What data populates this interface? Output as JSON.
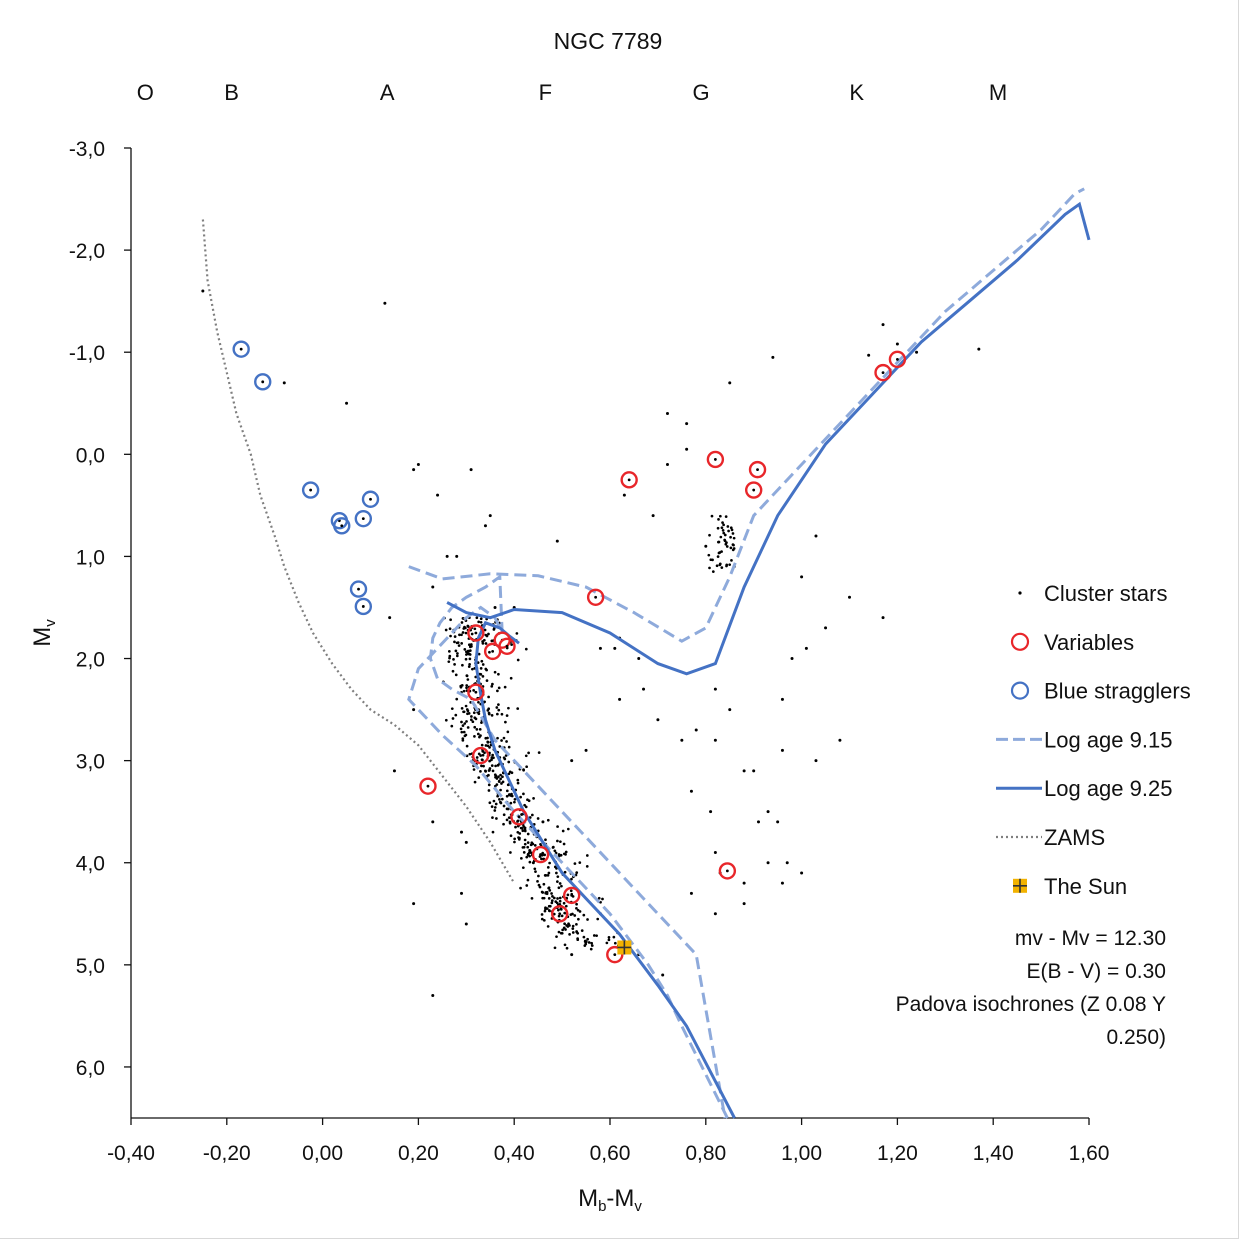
{
  "chart_data": {
    "type": "scatter",
    "title": "NGC 7789",
    "xlabel": "Mb-Mv",
    "ylabel": "Mv",
    "xlim": [
      -0.4,
      1.6
    ],
    "ylim": [
      6.5,
      -3.0
    ],
    "y_inverted": true,
    "grid": false,
    "legend_position": "right",
    "x_ticks": [
      -0.4,
      -0.2,
      0.0,
      0.2,
      0.4,
      0.6,
      0.8,
      1.0,
      1.2,
      1.4,
      1.6
    ],
    "x_tick_labels": [
      "-0,40",
      "-0,20",
      "0,00",
      "0,20",
      "0,40",
      "0,60",
      "0,80",
      "1,00",
      "1,20",
      "1,40",
      "1,60"
    ],
    "y_ticks": [
      -3,
      -2,
      -1,
      0,
      1,
      2,
      3,
      4,
      5,
      6
    ],
    "y_tick_labels": [
      "-3,0",
      "-2,0",
      "-1,0",
      "0,0",
      "1,0",
      "2,0",
      "3,0",
      "4,0",
      "5,0",
      "6,0"
    ],
    "spectral_classes": [
      {
        "label": "O",
        "x": -0.37
      },
      {
        "label": "B",
        "x": -0.19
      },
      {
        "label": "A",
        "x": 0.135
      },
      {
        "label": "F",
        "x": 0.465
      },
      {
        "label": "G",
        "x": 0.79
      },
      {
        "label": "K",
        "x": 1.115
      },
      {
        "label": "M",
        "x": 1.41
      }
    ],
    "series": [
      {
        "name": "Cluster stars",
        "kind": "points",
        "color": "#000000",
        "description": "main sequence and red clump members, scattered field points",
        "x": [
          -0.25,
          0.13,
          -0.08,
          0.05,
          0.19,
          0.31,
          0.24,
          0.35,
          0.34,
          0.26,
          0.23,
          0.14,
          0.29,
          0.49,
          0.76,
          0.72,
          0.63,
          0.69,
          0.8,
          1.1,
          1.17,
          1.0,
          1.03,
          1.24,
          1.37,
          1.17,
          1.2,
          1.14,
          0.94,
          0.85,
          0.76,
          0.72,
          0.62,
          0.62,
          0.66,
          0.7,
          0.82,
          0.88,
          0.96,
          1.08,
          0.96,
          0.98,
          1.01,
          1.05,
          1.03,
          0.93,
          0.93,
          0.91,
          0.9,
          0.85,
          0.82,
          0.75,
          0.77,
          0.95,
          0.97,
          0.88,
          0.83,
          0.77,
          0.82,
          0.66,
          0.52,
          0.46,
          0.71,
          0.82,
          0.88,
          0.96,
          1.0,
          0.81,
          0.15,
          0.19,
          0.23,
          0.61,
          0.3,
          0.29,
          0.19,
          0.3,
          0.52,
          0.78,
          0.36,
          0.28,
          0.2,
          0.23,
          0.55,
          0.58,
          0.67,
          0.4,
          0.44,
          0.58
        ],
        "y": [
          -1.6,
          -1.48,
          -0.7,
          -0.5,
          0.15,
          0.15,
          0.4,
          0.6,
          0.7,
          1.0,
          1.3,
          1.6,
          3.7,
          0.85,
          -0.05,
          -0.4,
          0.4,
          0.6,
          0.9,
          1.4,
          1.6,
          1.2,
          0.8,
          -1.0,
          -1.03,
          -1.27,
          -1.08,
          -0.97,
          -0.95,
          -0.7,
          -0.3,
          0.1,
          1.8,
          2.4,
          2.0,
          2.6,
          2.8,
          3.1,
          2.9,
          2.8,
          2.4,
          2.0,
          1.9,
          1.7,
          3.0,
          4.0,
          3.5,
          3.6,
          3.1,
          2.5,
          2.3,
          2.8,
          3.3,
          3.6,
          4.0,
          4.2,
          4.1,
          4.3,
          4.5,
          4.9,
          4.9,
          3.6,
          5.1,
          3.9,
          4.4,
          4.2,
          4.1,
          3.5,
          3.1,
          2.5,
          5.3,
          1.9,
          4.6,
          4.3,
          4.4,
          3.8,
          3.0,
          2.7,
          1.5,
          1.0,
          0.1,
          3.6,
          2.9,
          1.9,
          2.3,
          1.5,
          4.0,
          4.5
        ],
        "mock": true
      },
      {
        "name": "Variables",
        "kind": "circle",
        "color": "#e8262a",
        "x": [
          1.2,
          1.17,
          0.82,
          0.908,
          0.9,
          0.64,
          0.57,
          0.32,
          0.375,
          0.385,
          0.355,
          0.32,
          0.33,
          0.22,
          0.41,
          0.455,
          0.52,
          0.495,
          0.61,
          0.845
        ],
        "y": [
          -0.93,
          -0.8,
          0.05,
          0.15,
          0.35,
          0.25,
          1.4,
          1.75,
          1.82,
          1.88,
          1.93,
          2.33,
          2.95,
          3.25,
          3.55,
          3.92,
          4.32,
          4.5,
          4.9,
          4.08
        ]
      },
      {
        "name": "Blue stragglers",
        "kind": "circle",
        "color": "#4472c4",
        "x": [
          -0.17,
          -0.125,
          -0.025,
          0.035,
          0.04,
          0.085,
          0.1,
          0.075,
          0.085
        ],
        "y": [
          -1.03,
          -0.71,
          0.35,
          0.65,
          0.7,
          0.63,
          0.44,
          1.32,
          1.49
        ]
      },
      {
        "name": "Log age 9.15",
        "kind": "dashed-line",
        "color": "#8eaadb",
        "x": [
          0.845,
          0.75,
          0.72,
          0.68,
          0.6,
          0.5,
          0.4,
          0.32,
          0.25,
          0.18,
          0.2,
          0.26,
          0.3,
          0.33,
          0.36,
          0.375,
          0.37,
          0.34,
          0.3,
          0.27,
          0.245,
          0.23,
          0.225,
          0.24,
          0.27,
          0.31,
          0.36,
          0.42,
          0.48,
          0.54,
          0.6,
          0.66,
          0.72,
          0.78,
          0.84
        ],
        "y": [
          6.5,
          5.6,
          5.3,
          5.0,
          4.5,
          4.0,
          3.5,
          3.05,
          2.75,
          2.4,
          2.1,
          1.8,
          1.6,
          1.5,
          1.6,
          1.75,
          1.2,
          1.3,
          1.4,
          1.5,
          1.65,
          1.8,
          2.0,
          2.2,
          2.3,
          2.4,
          2.8,
          3.1,
          3.4,
          3.7,
          4.0,
          4.3,
          4.6,
          4.9,
          6.5
        ],
        "giant_branch_x": [
          0.18,
          0.25,
          0.35,
          0.45,
          0.55,
          0.65,
          0.75,
          0.8,
          0.85,
          0.9,
          1.0,
          1.1,
          1.2,
          1.3,
          1.4,
          1.5,
          1.57,
          1.59
        ],
        "giant_branch_y": [
          1.1,
          1.22,
          1.17,
          1.19,
          1.3,
          1.55,
          1.83,
          1.7,
          1.2,
          0.6,
          0.1,
          -0.4,
          -0.9,
          -1.4,
          -1.8,
          -2.2,
          -2.55,
          -2.6
        ]
      },
      {
        "name": "Log age 9.25",
        "kind": "solid-line",
        "color": "#4472c4",
        "x": [
          0.86,
          0.76,
          0.7,
          0.62,
          0.55,
          0.5,
          0.46,
          0.42,
          0.39,
          0.36,
          0.34,
          0.33,
          0.32,
          0.325,
          0.34,
          0.37,
          0.39,
          0.41
        ],
        "y": [
          6.5,
          5.6,
          5.2,
          4.7,
          4.35,
          4.1,
          3.8,
          3.5,
          3.2,
          2.9,
          2.6,
          2.35,
          2.05,
          1.8,
          1.65,
          1.7,
          1.78,
          1.85
        ],
        "giant_branch_x": [
          0.26,
          0.3,
          0.35,
          0.4,
          0.5,
          0.6,
          0.7,
          0.76,
          0.82,
          0.88,
          0.95,
          1.05,
          1.15,
          1.25,
          1.35,
          1.45,
          1.55,
          1.58,
          1.6
        ],
        "giant_branch_y": [
          1.45,
          1.55,
          1.6,
          1.52,
          1.55,
          1.75,
          2.05,
          2.15,
          2.05,
          1.3,
          0.6,
          -0.1,
          -0.6,
          -1.1,
          -1.5,
          -1.9,
          -2.35,
          -2.45,
          -2.1
        ]
      },
      {
        "name": "ZAMS",
        "kind": "dotted-line",
        "color": "#7f7f7f",
        "x": [
          -0.25,
          -0.24,
          -0.22,
          -0.2,
          -0.18,
          -0.15,
          -0.13,
          -0.1,
          -0.08,
          -0.05,
          -0.02,
          0.02,
          0.06,
          0.1,
          0.15,
          0.2,
          0.25,
          0.3,
          0.35,
          0.4
        ],
        "y": [
          -2.3,
          -1.7,
          -1.2,
          -0.8,
          -0.4,
          0.0,
          0.4,
          0.8,
          1.1,
          1.45,
          1.75,
          2.05,
          2.3,
          2.5,
          2.65,
          2.85,
          3.15,
          3.45,
          3.8,
          4.2
        ]
      },
      {
        "name": "The Sun",
        "kind": "square-plus",
        "color": "#f2b200",
        "x": [
          0.63
        ],
        "y": [
          4.83
        ]
      }
    ],
    "annotations": [
      "mv - Mv = 12.30",
      "E(B - V) = 0.30",
      "Padova isochrones (Z 0.08 Y",
      "0.250)"
    ]
  }
}
